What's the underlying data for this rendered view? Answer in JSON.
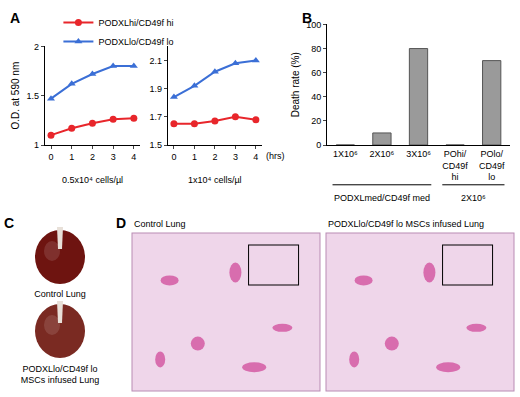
{
  "chart_data": [
    {
      "type": "line",
      "panel": "A",
      "ylabel": "O.D. at 590 nm",
      "annotation": "0.5x10⁴ cells/µl",
      "x": [
        0,
        1,
        2,
        3,
        4
      ],
      "xlim": [
        -0.3,
        4.3
      ],
      "xticks": [
        0,
        1,
        2,
        3,
        4
      ],
      "ylim": [
        1,
        2
      ],
      "yticks": [
        1,
        1.5,
        2
      ],
      "legend": "top",
      "series": [
        {
          "name": "PODXLhi/CD49f hi",
          "color": "#e8262b",
          "marker": "circle",
          "values": [
            1.1,
            1.17,
            1.22,
            1.26,
            1.27
          ]
        },
        {
          "name": "PODXLlo/CD49f lo",
          "color": "#3b6fd6",
          "marker": "triangle-up",
          "values": [
            1.47,
            1.62,
            1.72,
            1.8,
            1.8
          ]
        }
      ]
    },
    {
      "type": "line",
      "xlabel": "(hrs)",
      "annotation": "1x10⁴ cells/µl",
      "x": [
        0,
        1,
        2,
        3,
        4
      ],
      "xlim": [
        -0.3,
        4.3
      ],
      "xticks": [
        0,
        1,
        2,
        3,
        4
      ],
      "ylim": [
        1.5,
        2.2
      ],
      "yticks": [
        1.5,
        1.7,
        1.9,
        2.1
      ],
      "series": [
        {
          "name": "PODXLhi/CD49f hi",
          "color": "#e8262b",
          "marker": "circle",
          "values": [
            1.65,
            1.65,
            1.67,
            1.7,
            1.68
          ]
        },
        {
          "name": "PODXLlo/CD49f lo",
          "color": "#3b6fd6",
          "marker": "triangle-up",
          "values": [
            1.84,
            1.92,
            2.02,
            2.08,
            2.1
          ]
        }
      ]
    },
    {
      "type": "bar",
      "panel": "B",
      "ylabel": "Death rate (%)",
      "categories": [
        "1X10⁶",
        "2X10⁶",
        "3X10⁶",
        "POhi/CD49f hi",
        "POlo/CD49f lo"
      ],
      "values": [
        0,
        10,
        80,
        0,
        70
      ],
      "color": "#9a9a9a",
      "ylim": [
        0,
        100
      ],
      "yticks": [
        0,
        20,
        40,
        60,
        80,
        100
      ],
      "groups": [
        {
          "label": "PODXLmed/CD49f med",
          "span": [
            0,
            2
          ]
        },
        {
          "label": "2X10⁶",
          "span": [
            3,
            4
          ]
        }
      ]
    }
  ],
  "images": [
    {
      "panel": "C",
      "captions": [
        "Control Lung",
        "PODXLlo/CD49f lo MSCs infused Lung"
      ]
    },
    {
      "panel": "D",
      "captions": [
        "Control Lung",
        "PODXLlo/CD49f lo MSCs infused Lung"
      ]
    }
  ]
}
